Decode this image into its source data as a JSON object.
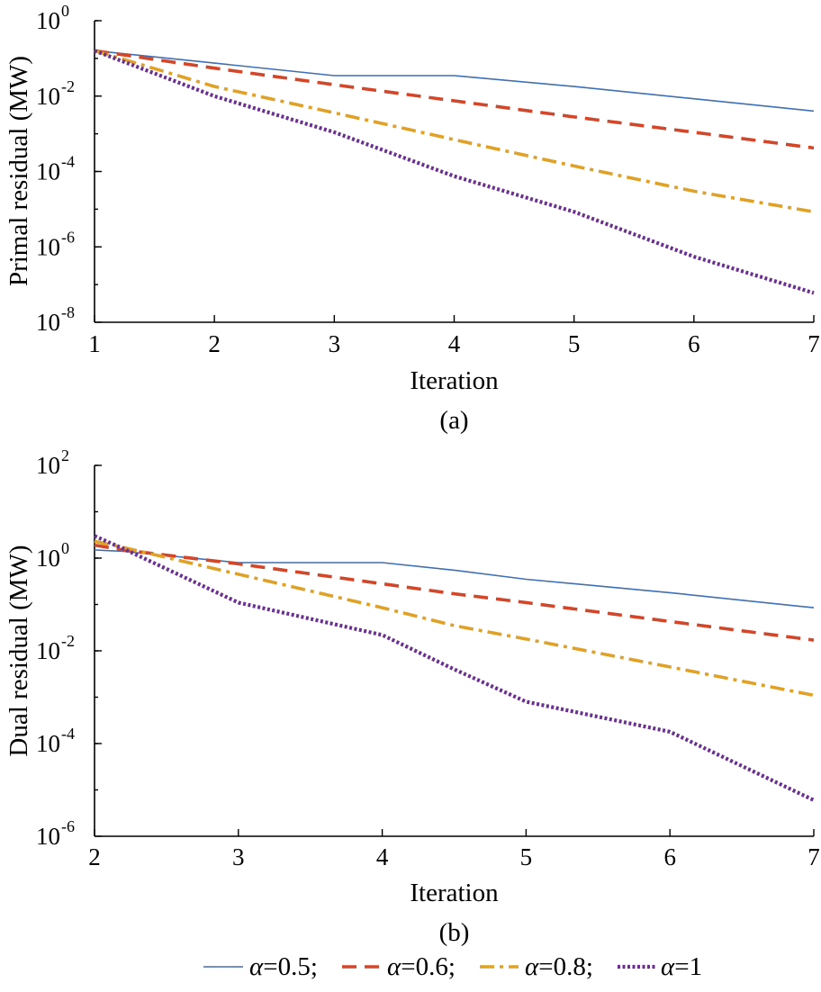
{
  "chart_data": [
    {
      "type": "line",
      "panel_label": "(a)",
      "xlabel": "Iteration",
      "ylabel": "Primal residual (MW)",
      "y_scale": "log",
      "xlim": [
        1,
        7
      ],
      "ylim_exp": [
        -8,
        0
      ],
      "x_ticks": [
        "1",
        "2",
        "3",
        "4",
        "5",
        "6",
        "7"
      ],
      "y_ticks": [
        {
          "base": "10",
          "exp": "0",
          "value_exp": 0
        },
        {
          "base": "10",
          "exp": "-2",
          "value_exp": -2
        },
        {
          "base": "10",
          "exp": "-4",
          "value_exp": -4
        },
        {
          "base": "10",
          "exp": "-6",
          "value_exp": -6
        },
        {
          "base": "10",
          "exp": "-8",
          "value_exp": -8
        }
      ],
      "x": [
        1,
        2,
        3,
        4,
        5,
        6,
        7
      ],
      "series": [
        {
          "key": "a05",
          "values": [
            0.16,
            0.075,
            0.035,
            0.035,
            0.018,
            0.0085,
            0.004
          ]
        },
        {
          "key": "a06",
          "values": [
            0.16,
            0.055,
            0.02,
            0.0075,
            0.0028,
            0.0011,
            0.00042
          ]
        },
        {
          "key": "a08",
          "values": [
            0.16,
            0.018,
            0.0036,
            0.0007,
            0.00014,
            3e-05,
            8.5e-06
          ]
        },
        {
          "key": "a1",
          "values": [
            0.16,
            0.01,
            0.0011,
            7.5e-05,
            8.5e-06,
            5.5e-07,
            6e-08
          ]
        }
      ]
    },
    {
      "type": "line",
      "panel_label": "(b)",
      "xlabel": "Iteration",
      "ylabel": "Dual residual (MW)",
      "y_scale": "log",
      "xlim": [
        2,
        7
      ],
      "ylim_exp": [
        -6,
        2
      ],
      "x_ticks": [
        "2",
        "3",
        "4",
        "5",
        "6",
        "7"
      ],
      "y_ticks": [
        {
          "base": "10",
          "exp": "2",
          "value_exp": 2
        },
        {
          "base": "10",
          "exp": "0",
          "value_exp": 0
        },
        {
          "base": "10",
          "exp": "-2",
          "value_exp": -2
        },
        {
          "base": "10",
          "exp": "-4",
          "value_exp": -4
        },
        {
          "base": "10",
          "exp": "-6",
          "value_exp": -6
        }
      ],
      "x": [
        2,
        2.2,
        3,
        4,
        4.5,
        5,
        6,
        7
      ],
      "series": [
        {
          "key": "a05",
          "values": [
            1.5,
            1.4,
            0.8,
            0.8,
            0.55,
            0.35,
            0.18,
            0.085
          ]
        },
        {
          "key": "a06",
          "values": [
            1.9,
            1.5,
            0.75,
            0.28,
            0.17,
            0.11,
            0.043,
            0.017
          ]
        },
        {
          "key": "a08",
          "values": [
            2.3,
            1.7,
            0.45,
            0.085,
            0.035,
            0.018,
            0.0045,
            0.0011
          ]
        },
        {
          "key": "a1",
          "values": [
            3.0,
            1.6,
            0.11,
            0.022,
            0.004,
            0.0008,
            0.00018,
            6e-06
          ]
        }
      ]
    }
  ],
  "legend": [
    {
      "key": "a05",
      "symbol": "α",
      "text": "=0.5;",
      "color": "#3f6fb5",
      "dash": "solid"
    },
    {
      "key": "a06",
      "symbol": "α",
      "text": "=0.6;",
      "color": "#d2462a",
      "dash": "dashed"
    },
    {
      "key": "a08",
      "symbol": "α",
      "text": "=0.8;",
      "color": "#e0a127",
      "dash": "dashdot"
    },
    {
      "key": "a1",
      "symbol": "α",
      "text": "=1",
      "color": "#6b2f91",
      "dash": "dotted"
    }
  ]
}
